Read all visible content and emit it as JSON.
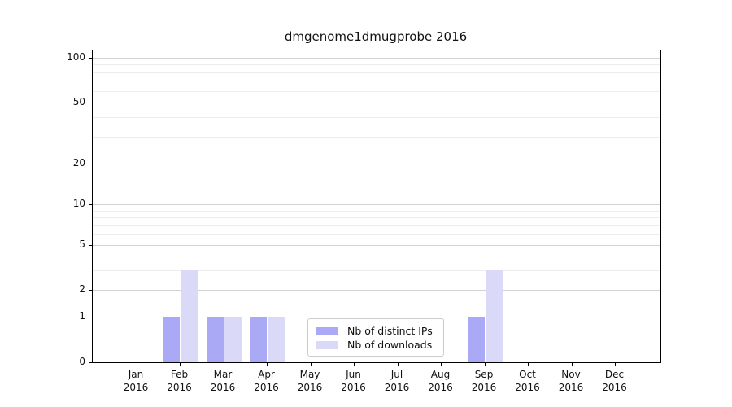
{
  "chart_data": {
    "type": "bar",
    "title": "dmgenome1dmugprobe 2016",
    "categories": [
      "Jan",
      "Feb",
      "Mar",
      "Apr",
      "May",
      "Jun",
      "Jul",
      "Aug",
      "Sep",
      "Oct",
      "Nov",
      "Dec"
    ],
    "category_year": "2016",
    "series": [
      {
        "name": "Nb of distinct IPs",
        "color": "#a9a9f5",
        "values": [
          0,
          1,
          1,
          1,
          0,
          0,
          0,
          0,
          1,
          0,
          0,
          0
        ]
      },
      {
        "name": "Nb of downloads",
        "color": "#dadaf8",
        "values": [
          0,
          3,
          1,
          1,
          0,
          0,
          0,
          0,
          3,
          0,
          0,
          0
        ]
      }
    ],
    "yscale": "log",
    "yticks": [
      0,
      1,
      2,
      5,
      10,
      20,
      50,
      100
    ],
    "ylim": [
      0,
      100
    ],
    "xlabel": "",
    "ylabel": "",
    "grid": "horizontal",
    "legend_position": "lower-center"
  }
}
